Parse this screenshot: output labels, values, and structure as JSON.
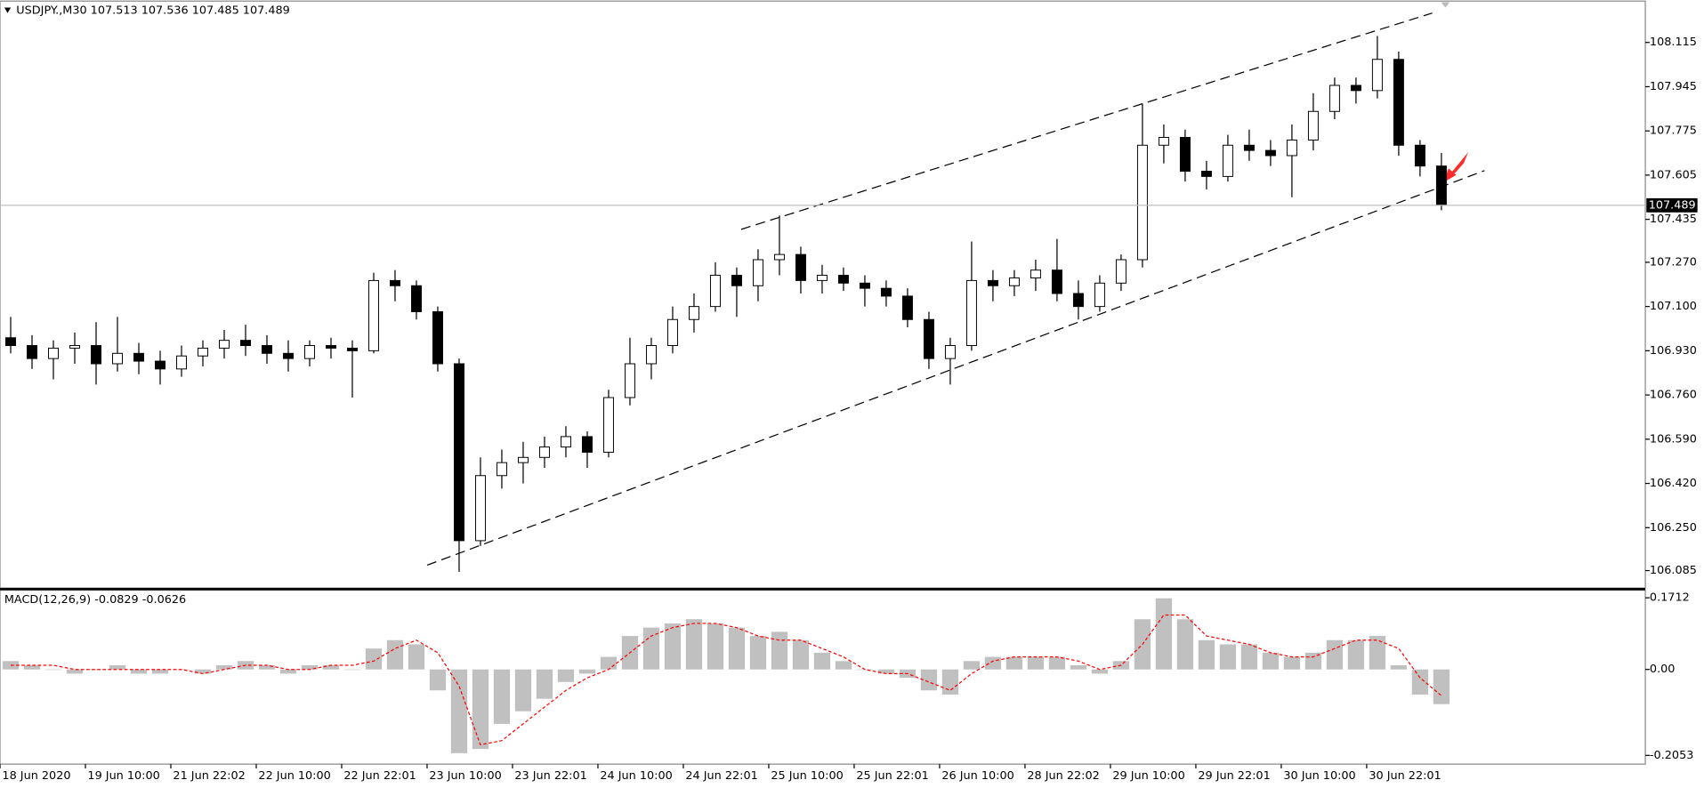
{
  "chart_data": [
    {
      "type": "candlestick",
      "title": "USDJPY.,M30 107.513 107.536 107.485 107.489",
      "current_price": 107.489,
      "ylim": [
        106.018,
        108.274
      ],
      "yticks": [
        108.115,
        107.945,
        107.775,
        107.605,
        107.435,
        {
          "value": 107.27,
          "label": "107.270"
        },
        {
          "value": 107.1,
          "label": "107.100"
        },
        {
          "value": 106.93,
          "label": "106.930"
        },
        {
          "value": 106.76,
          "label": "106.760"
        },
        {
          "value": 106.59,
          "label": "106.590"
        },
        {
          "value": 106.42,
          "label": "106.420"
        },
        {
          "value": 106.25,
          "label": "106.250"
        },
        106.085
      ],
      "categories": [
        "18 Jun 2020",
        null,
        null,
        null,
        "19 Jun 10:00",
        null,
        null,
        null,
        "21 Jun 22:02",
        null,
        null,
        null,
        "22 Jun 10:00",
        null,
        null,
        null,
        "22 Jun 22:01",
        null,
        null,
        null,
        "23 Jun 10:00",
        null,
        null,
        null,
        "23 Jun 22:01",
        null,
        null,
        null,
        "24 Jun 10:00",
        null,
        null,
        null,
        "24 Jun 22:01",
        null,
        null,
        null,
        "25 Jun 10:00",
        null,
        null,
        null,
        "25 Jun 22:01",
        null,
        null,
        null,
        "26 Jun 10:00",
        null,
        null,
        null,
        "28 Jun 22:02",
        null,
        null,
        null,
        "29 Jun 10:00",
        null,
        null,
        null,
        "29 Jun 22:01",
        null,
        null,
        null,
        "30 Jun 10:00",
        null,
        null,
        null,
        "30 Jun 22:01",
        null,
        null,
        null
      ],
      "open": [
        106.98,
        106.95,
        106.9,
        106.94,
        106.95,
        106.88,
        106.92,
        106.89,
        106.86,
        106.91,
        106.94,
        106.97,
        106.95,
        106.92,
        106.9,
        106.95,
        106.94,
        106.93,
        107.2,
        107.18,
        107.08,
        106.88,
        106.2,
        106.45,
        106.5,
        106.52,
        106.56,
        106.6,
        106.54,
        106.75,
        106.88,
        106.95,
        107.05,
        107.1,
        107.22,
        107.18,
        107.28,
        107.3,
        107.2,
        107.22,
        107.19,
        107.17,
        107.14,
        107.05,
        106.9,
        106.95,
        107.2,
        107.18,
        107.21,
        107.24,
        107.15,
        107.1,
        107.19,
        107.28,
        107.72,
        107.75,
        107.62,
        107.6,
        107.72,
        107.7,
        107.68,
        107.74,
        107.85,
        107.95,
        107.93,
        108.05,
        107.72,
        107.64
      ],
      "high": [
        107.06,
        106.99,
        106.97,
        107.0,
        107.04,
        107.06,
        106.96,
        106.93,
        106.95,
        106.97,
        107.01,
        107.03,
        106.99,
        106.97,
        106.97,
        106.98,
        106.97,
        107.23,
        107.24,
        107.2,
        107.1,
        106.9,
        106.52,
        106.55,
        106.58,
        106.6,
        106.64,
        106.62,
        106.78,
        106.98,
        106.98,
        107.1,
        107.15,
        107.27,
        107.25,
        107.32,
        107.45,
        107.33,
        107.26,
        107.25,
        107.22,
        107.2,
        107.17,
        107.08,
        106.98,
        107.35,
        107.24,
        107.24,
        107.28,
        107.36,
        107.2,
        107.22,
        107.3,
        107.88,
        107.8,
        107.78,
        107.66,
        107.76,
        107.78,
        107.74,
        107.8,
        107.92,
        107.98,
        107.98,
        108.14,
        108.08,
        107.74,
        107.69
      ],
      "low": [
        106.92,
        106.86,
        106.82,
        106.88,
        106.8,
        106.85,
        106.84,
        106.8,
        106.83,
        106.87,
        106.9,
        106.91,
        106.88,
        106.85,
        106.87,
        106.9,
        106.75,
        106.92,
        107.12,
        107.05,
        106.85,
        106.08,
        106.18,
        106.4,
        106.42,
        106.48,
        106.52,
        106.48,
        106.52,
        106.72,
        106.82,
        106.92,
        107.0,
        107.08,
        107.06,
        107.12,
        107.22,
        107.15,
        107.15,
        107.16,
        107.1,
        107.1,
        107.02,
        106.86,
        106.8,
        106.93,
        107.12,
        107.14,
        107.16,
        107.12,
        107.05,
        107.08,
        107.16,
        107.25,
        107.65,
        107.58,
        107.55,
        107.58,
        107.66,
        107.64,
        107.52,
        107.7,
        107.82,
        107.88,
        107.9,
        107.68,
        107.6,
        107.47
      ],
      "close": [
        106.95,
        106.9,
        106.94,
        106.95,
        106.88,
        106.92,
        106.89,
        106.86,
        106.91,
        106.94,
        106.97,
        106.95,
        106.92,
        106.9,
        106.95,
        106.94,
        106.93,
        107.2,
        107.18,
        107.08,
        106.88,
        106.2,
        106.45,
        106.5,
        106.52,
        106.56,
        106.6,
        106.54,
        106.75,
        106.88,
        106.95,
        107.05,
        107.1,
        107.22,
        107.18,
        107.28,
        107.3,
        107.2,
        107.22,
        107.19,
        107.17,
        107.14,
        107.05,
        106.9,
        106.95,
        107.2,
        107.18,
        107.21,
        107.24,
        107.15,
        107.1,
        107.19,
        107.28,
        107.72,
        107.75,
        107.62,
        107.6,
        107.72,
        107.7,
        107.68,
        107.74,
        107.85,
        107.95,
        107.93,
        108.05,
        107.72,
        107.64,
        107.49
      ],
      "color": "#000000"
    },
    {
      "type": "macd",
      "title": "MACD(12,26,9) -0.0829 -0.0626",
      "ylim": [
        -0.2261,
        0.1894
      ],
      "yticks": [
        0.1712,
        {
          "value": 0,
          "label": "0.00"
        },
        -0.2053
      ],
      "series": [
        {
          "color": "#c0c0c0",
          "values": [
            0.02,
            0.01,
            0.0,
            -0.01,
            0.0,
            0.01,
            -0.01,
            -0.01,
            0.0,
            -0.01,
            0.01,
            0.02,
            0.01,
            -0.01,
            0.01,
            0.01,
            0.0,
            0.05,
            0.07,
            0.06,
            -0.05,
            -0.2,
            -0.19,
            -0.13,
            -0.1,
            -0.07,
            -0.03,
            -0.01,
            0.03,
            0.08,
            0.1,
            0.11,
            0.12,
            0.11,
            0.1,
            0.08,
            0.09,
            0.07,
            0.04,
            0.02,
            0.0,
            -0.01,
            -0.02,
            -0.05,
            -0.06,
            0.02,
            0.03,
            0.03,
            0.03,
            0.03,
            0.01,
            -0.01,
            0.02,
            0.12,
            0.17,
            0.12,
            0.07,
            0.06,
            0.06,
            0.04,
            0.03,
            0.04,
            0.07,
            0.07,
            0.08,
            0.01,
            -0.06,
            -0.0829
          ]
        },
        {
          "color": "#ff0000",
          "values": [
            0.01,
            0.01,
            0.01,
            0.0,
            0.0,
            0.0,
            0.0,
            0.0,
            0.0,
            -0.01,
            0.0,
            0.01,
            0.01,
            0.0,
            0.0,
            0.01,
            0.01,
            0.02,
            0.05,
            0.07,
            0.04,
            -0.04,
            -0.18,
            -0.17,
            -0.13,
            -0.09,
            -0.05,
            -0.02,
            0.0,
            0.04,
            0.08,
            0.1,
            0.11,
            0.11,
            0.1,
            0.08,
            0.07,
            0.07,
            0.05,
            0.03,
            0.0,
            -0.01,
            -0.01,
            -0.03,
            -0.05,
            -0.01,
            0.02,
            0.03,
            0.03,
            0.03,
            0.02,
            0.0,
            0.01,
            0.06,
            0.13,
            0.13,
            0.08,
            0.07,
            0.06,
            0.04,
            0.03,
            0.03,
            0.05,
            0.07,
            0.07,
            0.05,
            -0.02,
            -0.0626
          ]
        }
      ]
    }
  ]
}
